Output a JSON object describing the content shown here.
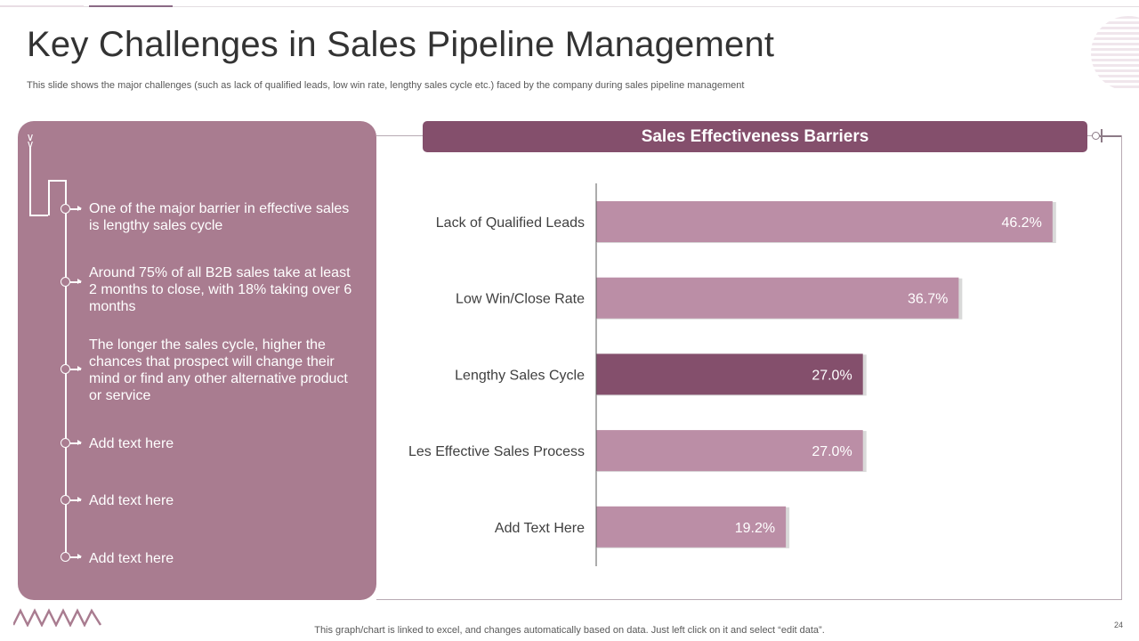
{
  "slide": {
    "title": "Key Challenges in Sales Pipeline Management",
    "subtitle": "This slide shows the major challenges (such as lack of qualified leads, low win rate, lengthy sales cycle etc.) faced by the company during sales pipeline management",
    "page_number": "24",
    "footnote": "This graph/chart is linked to excel,  and changes automatically based on data. Just left click on it and select “edit data”."
  },
  "left_panel": {
    "bullets": [
      "One of the major barrier in effective sales is lengthy  sales cycle",
      "Around 75% of all B2B sales take at least 2 months to close, with 18% taking over 6 months",
      "The longer the sales cycle, higher the chances that prospect will change their mind or find any other alternative product or service",
      "Add text here",
      "Add text here",
      "Add text here"
    ]
  },
  "colors": {
    "panel": "#a97c90",
    "header": "#844f6c",
    "bar": "#bb8ea6",
    "bar_highlight": "#844f6c"
  },
  "chart_data": {
    "type": "bar",
    "orientation": "horizontal",
    "title": "Sales Effectiveness  Barriers",
    "categories": [
      "Lack of Qualified Leads",
      "Low Win/Close Rate",
      "Lengthy Sales Cycle",
      "Les Effective Sales Process",
      "Add Text Here"
    ],
    "values": [
      46.2,
      36.7,
      27.0,
      27.0,
      19.2
    ],
    "value_labels": [
      "46.2%",
      "36.7%",
      "27.0%",
      "27.0%",
      "19.2%"
    ],
    "highlight_index": 2,
    "xlim": [
      0,
      50
    ],
    "xlabel": "",
    "ylabel": "",
    "grid": false
  }
}
